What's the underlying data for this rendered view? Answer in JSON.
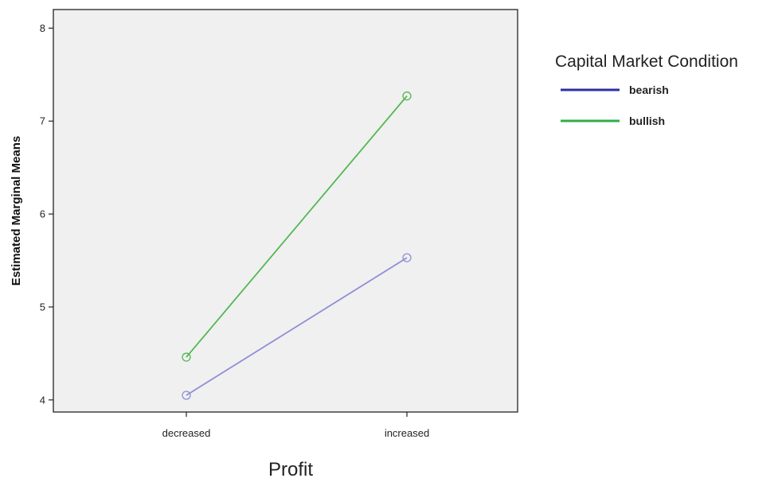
{
  "chart_data": {
    "type": "line",
    "title": "",
    "xlabel": "Profit",
    "ylabel": "Estimated Marginal Means",
    "categories": [
      "decreased",
      "increased"
    ],
    "y_ticks": [
      "4",
      "5",
      "6",
      "7",
      "8"
    ],
    "ylim": [
      3.87,
      8.2
    ],
    "grid": false,
    "legend": {
      "title": "Capital Market Condition",
      "position": "right"
    },
    "series": [
      {
        "name": "bearish",
        "values": [
          4.05,
          5.53
        ],
        "color": "#8f8fd6",
        "legend_color": "#2e2ea6"
      },
      {
        "name": "bullish",
        "values": [
          4.46,
          7.27
        ],
        "color": "#52b852",
        "legend_color": "#2fae4a"
      }
    ],
    "colors": {
      "plot_background": "#f0f0f0",
      "axis": "#222222"
    }
  }
}
